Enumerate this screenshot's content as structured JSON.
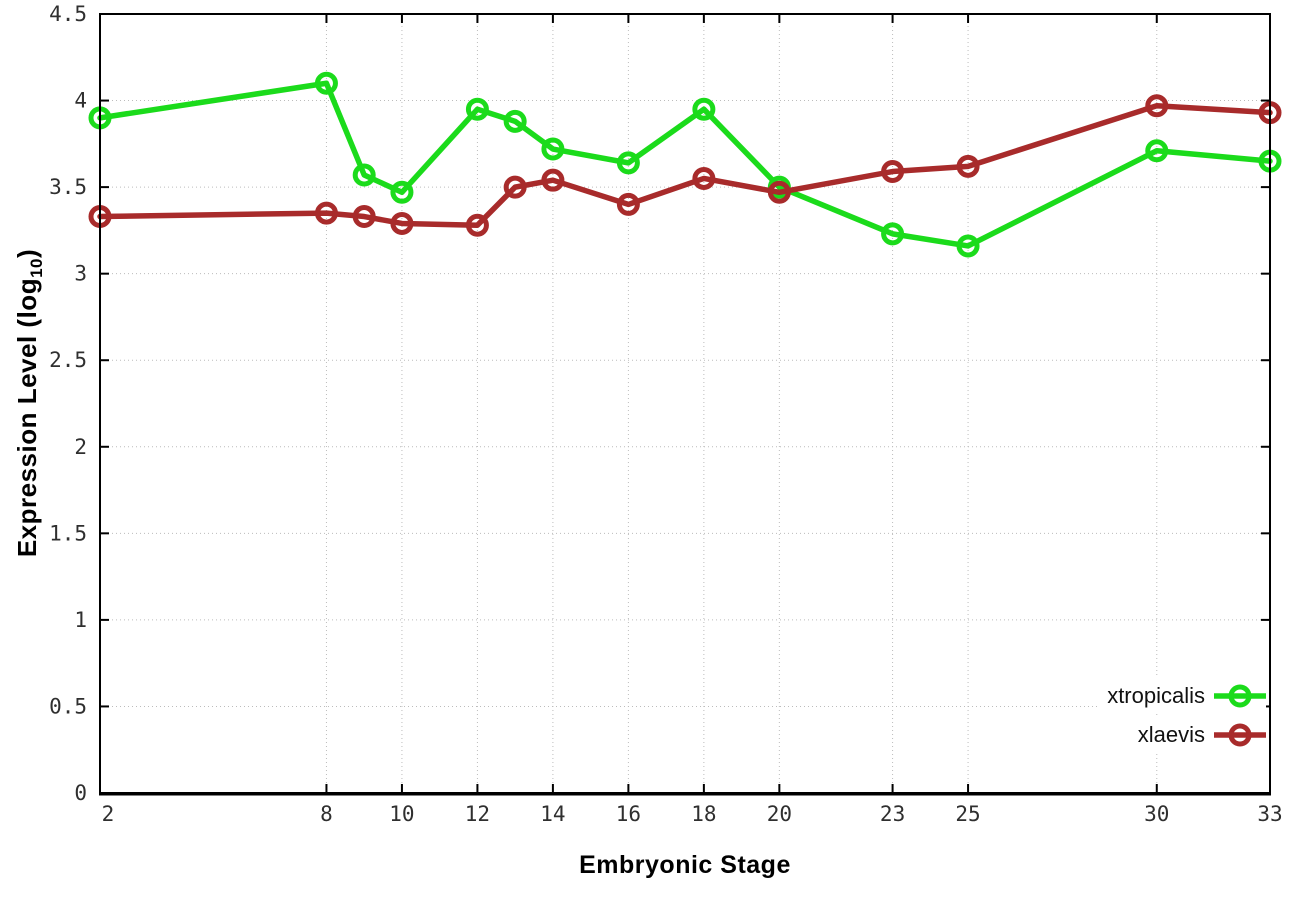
{
  "chart_data": {
    "type": "line",
    "title": "",
    "xlabel": "Embryonic Stage",
    "ylabel": "Expression Level (log10)",
    "ylabel_parts": {
      "pre": "Expression Level (log",
      "sub": "10",
      "post": ")"
    },
    "xlim": [
      2,
      33
    ],
    "ylim": [
      0,
      4.5
    ],
    "x_ticks": [
      2,
      8,
      10,
      12,
      14,
      16,
      18,
      20,
      23,
      25,
      30,
      33
    ],
    "y_ticks": [
      0,
      0.5,
      1,
      1.5,
      2,
      2.5,
      3,
      3.5,
      4,
      4.5
    ],
    "grid": true,
    "grid_style": "dotted",
    "legend_position": "inside-bottom-right",
    "marker": "open-circle",
    "x": [
      2,
      8,
      9,
      10,
      12,
      13,
      14,
      16,
      18,
      20,
      23,
      25,
      30,
      33
    ],
    "series": [
      {
        "name": "xtropicalis",
        "color": "#1bdb1b",
        "values": [
          3.9,
          4.1,
          3.57,
          3.47,
          3.95,
          3.88,
          3.72,
          3.64,
          3.95,
          3.5,
          3.23,
          3.16,
          3.71,
          3.65
        ]
      },
      {
        "name": "xlaevis",
        "color": "#a82b2b",
        "values": [
          3.33,
          3.35,
          3.33,
          3.29,
          3.28,
          3.5,
          3.54,
          3.4,
          3.55,
          3.47,
          3.59,
          3.62,
          3.97,
          3.93
        ]
      }
    ]
  },
  "colors": {
    "background": "#ffffff",
    "axis": "#000000",
    "grid": "#bcbcbc",
    "tick_text": "#2f2f2f"
  }
}
